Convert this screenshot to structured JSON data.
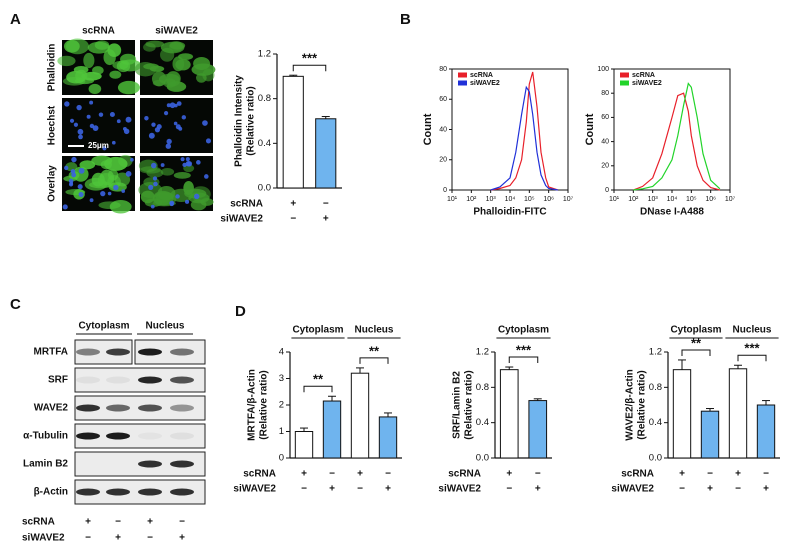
{
  "panels": {
    "labels": [
      "A",
      "B",
      "C",
      "D"
    ]
  },
  "micrographs": {
    "columns": [
      "scRNA",
      "siWAVE2"
    ],
    "rows": [
      "Phalloidin",
      "Hoechst",
      "Overlay"
    ],
    "scale_bar": "25μm"
  },
  "blot": {
    "columns": [
      "Cytoplasm",
      "Nucleus"
    ],
    "rows": [
      "MRTFA",
      "SRF",
      "WAVE2",
      "α-Tubulin",
      "Lamin B2",
      "β-Actin"
    ],
    "conditions": [
      {
        "name": "scRNA",
        "signs": [
          "+",
          "−",
          "+",
          "−"
        ]
      },
      {
        "name": "siWAVE2",
        "signs": [
          "−",
          "+",
          "−",
          "+"
        ]
      }
    ]
  },
  "chart_data": [
    {
      "type": "bar",
      "ylabel_lines": [
        "Phalloidin Intensity",
        "(Relative ratio)"
      ],
      "conditions": [
        {
          "name": "scRNA",
          "signs": [
            "+",
            "−"
          ]
        },
        {
          "name": "siWAVE2",
          "signs": [
            "−",
            "+"
          ]
        }
      ],
      "values": [
        1.0,
        0.62
      ],
      "errors": [
        0.01,
        0.02
      ],
      "colors": [
        "#ffffff",
        "#6fb4ee"
      ],
      "ylim": [
        0,
        1.2
      ],
      "yticks": [
        {
          "value": 0,
          "label": "0.0"
        },
        0.4,
        0.8,
        1.2
      ],
      "groups": [],
      "annotations": [
        "***"
      ]
    },
    {
      "type": "line",
      "xlabel": "Phalloidin-FITC",
      "ylabel": "Count",
      "log_x": true,
      "legend": "upper left",
      "x": [
        1000,
        3000,
        10000,
        20000,
        40000,
        70000,
        100000,
        150000,
        250000,
        400000,
        700000,
        1000000,
        3000000
      ],
      "series": [
        {
          "name": "scRNA",
          "color": "#e8202a",
          "values": [
            0,
            1,
            3,
            8,
            20,
            45,
            70,
            78,
            55,
            25,
            8,
            2,
            0
          ]
        },
        {
          "name": "siWAVE2",
          "color": "#2030d8",
          "values": [
            0,
            2,
            8,
            25,
            50,
            68,
            65,
            50,
            25,
            10,
            3,
            1,
            0
          ]
        }
      ],
      "xlim": [
        10,
        10000000
      ],
      "xticks": [
        {
          "value": 10,
          "label": "10¹"
        },
        {
          "value": 100,
          "label": "10²"
        },
        {
          "value": 1000,
          "label": "10³"
        },
        {
          "value": 10000,
          "label": "10⁴"
        },
        {
          "value": 100000,
          "label": "10⁵"
        },
        {
          "value": 1000000,
          "label": "10⁶"
        },
        {
          "value": 10000000,
          "label": "10⁷"
        }
      ],
      "ylim": [
        0,
        80
      ],
      "yticks": [
        0,
        20,
        40,
        60,
        80
      ]
    },
    {
      "type": "line",
      "xlabel": "DNase I-A488",
      "ylabel": "Count",
      "log_x": true,
      "legend": "upper left",
      "x": [
        100,
        300,
        1000,
        3000,
        10000,
        20000,
        40000,
        70000,
        100000,
        200000,
        400000,
        1000000,
        3000000
      ],
      "series": [
        {
          "name": "scRNA",
          "color": "#e8202a",
          "values": [
            0,
            3,
            10,
            30,
            60,
            78,
            80,
            65,
            45,
            20,
            8,
            2,
            0
          ]
        },
        {
          "name": "siWAVE2",
          "color": "#22d42a",
          "values": [
            0,
            1,
            3,
            10,
            25,
            45,
            70,
            88,
            85,
            60,
            30,
            8,
            1
          ]
        }
      ],
      "xlim": [
        10,
        10000000
      ],
      "xticks": [
        {
          "value": 10,
          "label": "10¹"
        },
        {
          "value": 100,
          "label": "10²"
        },
        {
          "value": 1000,
          "label": "10³"
        },
        {
          "value": 10000,
          "label": "10⁴"
        },
        {
          "value": 100000,
          "label": "10⁵"
        },
        {
          "value": 1000000,
          "label": "10⁶"
        },
        {
          "value": 10000000,
          "label": "10⁷"
        }
      ],
      "ylim": [
        0,
        100
      ],
      "yticks": [
        0,
        20,
        40,
        60,
        80,
        100
      ]
    },
    {
      "type": "bar",
      "ylabel_lines": [
        "MRTFA/β-Actin",
        "(Relative ratio)"
      ],
      "conditions": [
        {
          "name": "scRNA",
          "signs": [
            "+",
            "−",
            "+",
            "−"
          ]
        },
        {
          "name": "siWAVE2",
          "signs": [
            "−",
            "+",
            "−",
            "+"
          ]
        }
      ],
      "values": [
        1.0,
        2.15,
        3.2,
        1.55
      ],
      "errors": [
        0.13,
        0.18,
        0.2,
        0.15
      ],
      "colors": [
        "#ffffff",
        "#6fb4ee"
      ],
      "ylim": [
        0,
        4
      ],
      "yticks": [
        0,
        1,
        2,
        3,
        4
      ],
      "groups": [
        "Cytoplasm",
        "Nucleus"
      ],
      "annotations": [
        "**",
        "**"
      ]
    },
    {
      "type": "bar",
      "ylabel_lines": [
        "SRF/Lamin B2",
        "(Relative ratio)"
      ],
      "conditions": [
        {
          "name": "scRNA",
          "signs": [
            "+",
            "−"
          ]
        },
        {
          "name": "siWAVE2",
          "signs": [
            "−",
            "+"
          ]
        }
      ],
      "values": [
        1.0,
        0.65
      ],
      "errors": [
        0.03,
        0.02
      ],
      "colors": [
        "#ffffff",
        "#6fb4ee"
      ],
      "ylim": [
        0,
        1.2
      ],
      "yticks": [
        {
          "value": 0,
          "label": "0.0"
        },
        0.4,
        0.8,
        1.2
      ],
      "groups": [
        "Cytoplasm"
      ],
      "annotations": [
        "***"
      ]
    },
    {
      "type": "bar",
      "ylabel_lines": [
        "WAVE2/β-Actin",
        "(Relative ratio)"
      ],
      "conditions": [
        {
          "name": "scRNA",
          "signs": [
            "+",
            "−",
            "+",
            "−"
          ]
        },
        {
          "name": "siWAVE2",
          "signs": [
            "−",
            "+",
            "−",
            "+"
          ]
        }
      ],
      "values": [
        1.0,
        0.53,
        1.01,
        0.6
      ],
      "errors": [
        0.11,
        0.03,
        0.04,
        0.05
      ],
      "colors": [
        "#ffffff",
        "#6fb4ee"
      ],
      "ylim": [
        0,
        1.2
      ],
      "yticks": [
        {
          "value": 0,
          "label": "0.0"
        },
        0.4,
        0.8,
        1.2
      ],
      "groups": [
        "Cytoplasm",
        "Nucleus"
      ],
      "annotations": [
        "**",
        "***"
      ]
    }
  ]
}
